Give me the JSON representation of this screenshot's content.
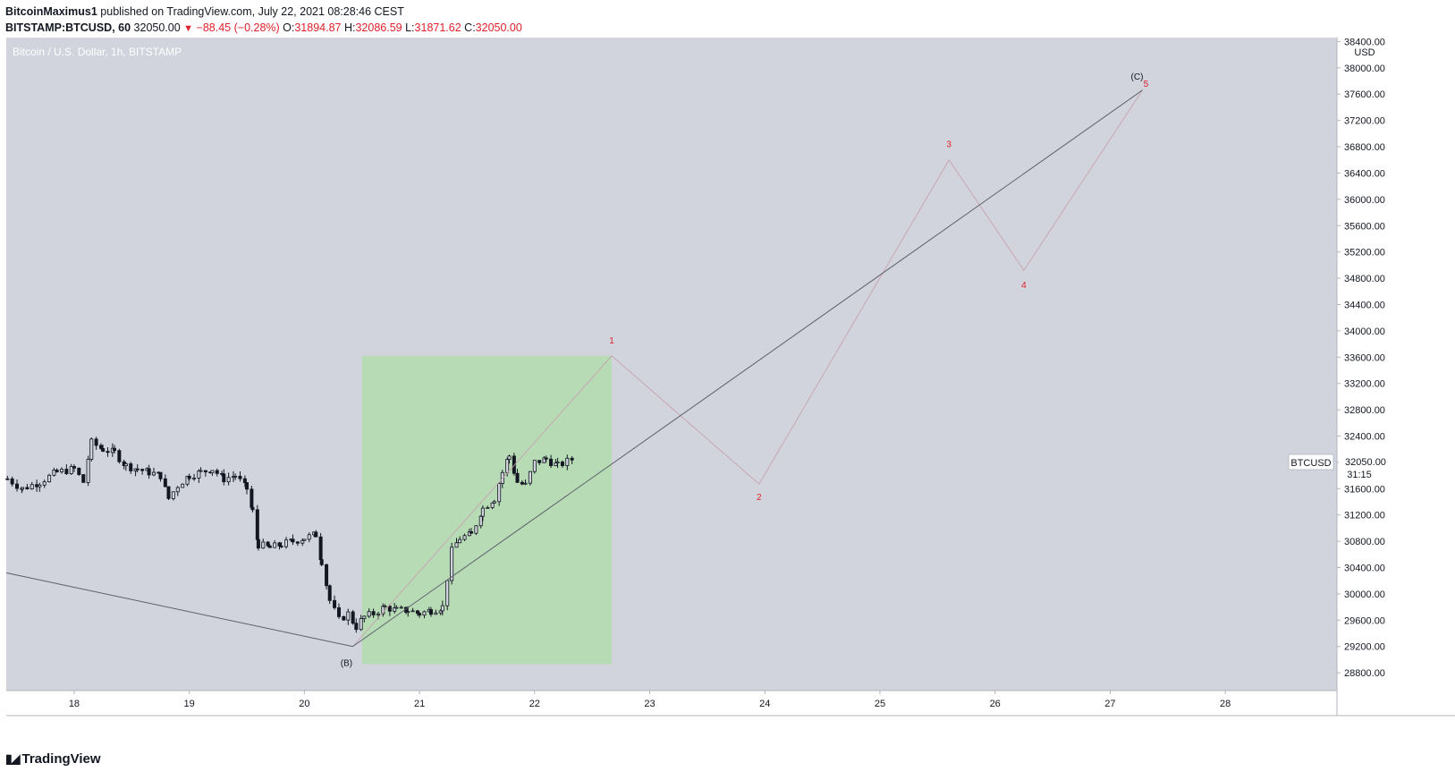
{
  "header": {
    "author": "BitcoinMaximus1",
    "published_text": "published on TradingView.com, July 22, 2021 08:28:46 CEST",
    "symbol_line": "BITSTAMP:BTCUSD, 60",
    "last": "32050.00",
    "change": "−88.45 (−0.28%)",
    "o_label": "O:",
    "o_value": "31894.87",
    "h_label": "H:",
    "h_value": "32086.59",
    "l_label": "L:",
    "l_value": "31871.62",
    "c_label": "C:",
    "c_value": "32050.00"
  },
  "footer": {
    "brand": "TradingView"
  },
  "colors": {
    "plot_bg": "#d1d4dc",
    "green_box": "#b7dbb5",
    "wave_red": "#e0202a",
    "trend_line": "#5d606b",
    "candle": "#131722"
  },
  "chart_data": {
    "type": "candlestick",
    "title": "Bitcoin / U.S. Dollar, 1h, BITSTAMP",
    "currency_label": "USD",
    "y_ticks": [
      28800,
      29200,
      29600,
      30000,
      30400,
      30800,
      31200,
      31600,
      32000,
      32400,
      32800,
      33200,
      33600,
      34000,
      34400,
      34800,
      35200,
      35600,
      36000,
      36400,
      36800,
      37200,
      37600,
      38000,
      38400
    ],
    "ylim": [
      28530,
      38460
    ],
    "x_ticks": [
      "18",
      "19",
      "20",
      "21",
      "22",
      "23",
      "24",
      "25",
      "26",
      "27",
      "28"
    ],
    "xlim": [
      17.41,
      28.97
    ],
    "last_price_symbol": "BTCUSD",
    "last_price_label": "32050.00",
    "countdown": "31:15",
    "candles_close_path": [
      [
        17.42,
        31750
      ],
      [
        17.55,
        31600
      ],
      [
        17.7,
        31700
      ],
      [
        17.85,
        31850
      ],
      [
        18.0,
        31900
      ],
      [
        18.08,
        31700
      ],
      [
        18.15,
        32300
      ],
      [
        18.25,
        32200
      ],
      [
        18.35,
        32150
      ],
      [
        18.45,
        31950
      ],
      [
        18.55,
        31900
      ],
      [
        18.65,
        31850
      ],
      [
        18.75,
        31800
      ],
      [
        18.82,
        31450
      ],
      [
        18.9,
        31650
      ],
      [
        19.0,
        31800
      ],
      [
        19.1,
        31850
      ],
      [
        19.2,
        31900
      ],
      [
        19.3,
        31750
      ],
      [
        19.4,
        31800
      ],
      [
        19.5,
        31600
      ],
      [
        19.55,
        31250
      ],
      [
        19.6,
        30750
      ],
      [
        19.7,
        30700
      ],
      [
        19.8,
        30750
      ],
      [
        19.9,
        30800
      ],
      [
        20.0,
        30850
      ],
      [
        20.1,
        30900
      ],
      [
        20.15,
        30500
      ],
      [
        20.22,
        29900
      ],
      [
        20.3,
        29600
      ],
      [
        20.38,
        29700
      ],
      [
        20.45,
        29500
      ],
      [
        20.52,
        29650
      ],
      [
        20.6,
        29700
      ],
      [
        20.7,
        29800
      ],
      [
        20.8,
        29750
      ],
      [
        20.9,
        29750
      ],
      [
        21.0,
        29700
      ],
      [
        21.1,
        29750
      ],
      [
        21.2,
        29800
      ],
      [
        21.28,
        30650
      ],
      [
        21.35,
        30850
      ],
      [
        21.45,
        30900
      ],
      [
        21.55,
        31300
      ],
      [
        21.65,
        31450
      ],
      [
        21.72,
        31850
      ],
      [
        21.78,
        32100
      ],
      [
        21.85,
        31700
      ],
      [
        21.92,
        31650
      ],
      [
        22.0,
        32000
      ],
      [
        22.1,
        32050
      ],
      [
        22.2,
        31950
      ],
      [
        22.33,
        32050
      ]
    ],
    "elliott_wave": {
      "points": [
        {
          "label": "(B)",
          "x": 20.42,
          "y": 29200
        },
        {
          "label": "1",
          "x": 22.67,
          "y": 33620
        },
        {
          "label": "2",
          "x": 23.95,
          "y": 31670
        },
        {
          "label": "3",
          "x": 25.6,
          "y": 36600
        },
        {
          "label": "4",
          "x": 26.25,
          "y": 34920
        },
        {
          "label": "5",
          "x": 27.28,
          "y": 37660
        },
        {
          "label": "(C)",
          "x": 27.28,
          "y": 37660
        }
      ]
    },
    "trend_lines": [
      {
        "from": {
          "x": 17.41,
          "y": 30320
        },
        "to": {
          "x": 20.42,
          "y": 29200
        }
      },
      {
        "from": {
          "x": 20.42,
          "y": 29200
        },
        "to": {
          "x": 27.28,
          "y": 37660
        }
      }
    ],
    "highlight_box": {
      "x0": 20.5,
      "x1": 22.67,
      "y0": 28930,
      "y1": 33620
    }
  }
}
